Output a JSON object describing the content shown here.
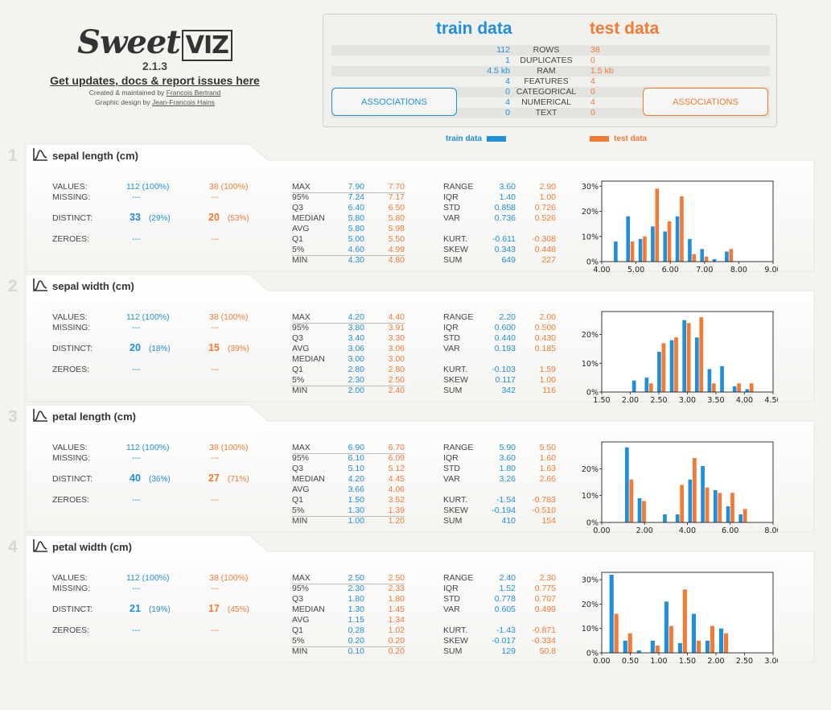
{
  "header": {
    "logo_text": "Sweet",
    "logo_viz": "VIZ",
    "version": "2.1.3",
    "updates_link": "Get updates, docs & report issues here",
    "created_prefix": "Created & maintained by",
    "created_name": "Francois Bertrand",
    "design_prefix": "Graphic design by",
    "design_name": "Jean-Francois Hains"
  },
  "summary": {
    "train_title": "train data",
    "test_title": "test data",
    "rows": [
      {
        "label": "ROWS",
        "train": "112",
        "test": "38"
      },
      {
        "label": "DUPLICATES",
        "train": "1",
        "test": "0"
      },
      {
        "label": "RAM",
        "train": "4.5 kb",
        "test": "1.5 kb"
      },
      {
        "label": "FEATURES",
        "train": "4",
        "test": "4"
      },
      {
        "label": "CATEGORICAL",
        "train": "0",
        "test": "0"
      },
      {
        "label": "NUMERICAL",
        "train": "4",
        "test": "4"
      },
      {
        "label": "TEXT",
        "train": "0",
        "test": "0"
      }
    ],
    "assoc_train_label": "ASSOCIATIONS",
    "assoc_test_label": "ASSOCIATIONS"
  },
  "legend": {
    "train": "train data",
    "test": "test data"
  },
  "colors": {
    "train": "#1f8fdc",
    "test": "#f47a34"
  },
  "labels": {
    "values": "VALUES:",
    "missing": "MISSING:",
    "distinct": "DISTINCT:",
    "zeroes": "ZEROES:",
    "max": "MAX",
    "p95": "95%",
    "q3": "Q3",
    "median": "MEDIAN",
    "avg": "AVG",
    "q1": "Q1",
    "p5": "5%",
    "min": "MIN",
    "range": "RANGE",
    "iqr": "IQR",
    "std": "STD",
    "var": "VAR",
    "kurt": "KURT.",
    "skew": "SKEW",
    "sum": "SUM"
  },
  "features": [
    {
      "num": "1",
      "name": "sepal length (cm)",
      "train": {
        "values": "112 (100%)",
        "missing": "---",
        "distinct": "33",
        "distinct_pct": "(29%)",
        "zeroes": "---"
      },
      "test": {
        "values": "38 (100%)",
        "missing": "---",
        "distinct": "20",
        "distinct_pct": "(53%)",
        "zeroes": "---"
      },
      "quant_order": [
        "max",
        "p95",
        "q3",
        "median",
        "avg",
        "q1",
        "p5",
        "min"
      ],
      "quant": {
        "max": [
          "7.90",
          "7.70"
        ],
        "p95": [
          "7.24",
          "7.17"
        ],
        "q3": [
          "6.40",
          "6.50"
        ],
        "median": [
          "5.80",
          "5.80"
        ],
        "avg": [
          "5.80",
          "5.98"
        ],
        "q1": [
          "5.00",
          "5.50"
        ],
        "p5": [
          "4.60",
          "4.99"
        ],
        "min": [
          "4.30",
          "4.80"
        ]
      },
      "stats": {
        "range": [
          "3.60",
          "2.90"
        ],
        "iqr": [
          "1.40",
          "1.00"
        ],
        "std": [
          "0.858",
          "0.726"
        ],
        "var": [
          "0.736",
          "0.526"
        ],
        "kurt": [
          "-0.611",
          "-0.308"
        ],
        "skew": [
          "0.343",
          "0.448"
        ],
        "sum": [
          "649",
          "227"
        ]
      },
      "hist": {
        "x_ticks": [
          "4.00",
          "5.00",
          "6.00",
          "7.00",
          "8.00",
          "9.00"
        ],
        "y_ticks": [
          "0%",
          "10%",
          "20%",
          "30%"
        ],
        "xlim": [
          4.0,
          9.0
        ],
        "ylim": [
          0,
          32
        ],
        "y_tick_values": [
          0,
          10,
          20,
          30
        ],
        "bin_edges": [
          4.3,
          4.66,
          5.02,
          5.38,
          5.74,
          6.1,
          6.46,
          6.82,
          7.18,
          7.54,
          7.9
        ],
        "train": [
          8,
          18,
          9,
          14,
          12,
          18,
          9,
          5,
          1,
          4
        ],
        "test": [
          0,
          8,
          10,
          29,
          16,
          26,
          3,
          2,
          0,
          5
        ]
      }
    },
    {
      "num": "2",
      "name": "sepal width (cm)",
      "train": {
        "values": "112 (100%)",
        "missing": "---",
        "distinct": "20",
        "distinct_pct": "(18%)",
        "zeroes": "---"
      },
      "test": {
        "values": "38 (100%)",
        "missing": "---",
        "distinct": "15",
        "distinct_pct": "(39%)",
        "zeroes": "---"
      },
      "quant_order": [
        "max",
        "p95",
        "q3",
        "avg",
        "median",
        "q1",
        "p5",
        "min"
      ],
      "quant": {
        "max": [
          "4.20",
          "4.40"
        ],
        "p95": [
          "3.80",
          "3.91"
        ],
        "q3": [
          "3.40",
          "3.30"
        ],
        "avg": [
          "3.06",
          "3.06"
        ],
        "median": [
          "3.00",
          "3.00"
        ],
        "q1": [
          "2.80",
          "2.80"
        ],
        "p5": [
          "2.30",
          "2.50"
        ],
        "min": [
          "2.00",
          "2.40"
        ]
      },
      "stats": {
        "range": [
          "2.20",
          "2.00"
        ],
        "iqr": [
          "0.600",
          "0.500"
        ],
        "std": [
          "0.440",
          "0.430"
        ],
        "var": [
          "0.193",
          "0.185"
        ],
        "kurt": [
          "-0.103",
          "1.59"
        ],
        "skew": [
          "0.117",
          "1.00"
        ],
        "sum": [
          "342",
          "116"
        ]
      },
      "hist": {
        "x_ticks": [
          "1.50",
          "2.00",
          "2.50",
          "3.00",
          "3.50",
          "4.00",
          "4.50"
        ],
        "y_ticks": [
          "0%",
          "10%",
          "20%"
        ],
        "xlim": [
          1.5,
          4.5
        ],
        "ylim": [
          0,
          28
        ],
        "y_tick_values": [
          0,
          10,
          20
        ],
        "bin_edges": [
          2.0,
          2.22,
          2.44,
          2.66,
          2.88,
          3.1,
          3.32,
          3.54,
          3.76,
          3.98,
          4.2
        ],
        "train": [
          4,
          5,
          14,
          18,
          25,
          19,
          8,
          9,
          2,
          1
        ],
        "test": [
          0,
          3,
          17,
          19,
          24,
          26,
          3,
          0,
          3,
          3
        ]
      }
    },
    {
      "num": "3",
      "name": "petal length (cm)",
      "train": {
        "values": "112 (100%)",
        "missing": "---",
        "distinct": "40",
        "distinct_pct": "(36%)",
        "zeroes": "---"
      },
      "test": {
        "values": "38 (100%)",
        "missing": "---",
        "distinct": "27",
        "distinct_pct": "(71%)",
        "zeroes": "---"
      },
      "quant_order": [
        "max",
        "p95",
        "q3",
        "median",
        "avg",
        "q1",
        "p5",
        "min"
      ],
      "quant": {
        "max": [
          "6.90",
          "6.70"
        ],
        "p95": [
          "6.10",
          "6.09"
        ],
        "q3": [
          "5.10",
          "5.12"
        ],
        "median": [
          "4.20",
          "4.45"
        ],
        "avg": [
          "3.66",
          "4.06"
        ],
        "q1": [
          "1.50",
          "3.52"
        ],
        "p5": [
          "1.30",
          "1.39"
        ],
        "min": [
          "1.00",
          "1.20"
        ]
      },
      "stats": {
        "range": [
          "5.90",
          "5.50"
        ],
        "iqr": [
          "3.60",
          "1.60"
        ],
        "std": [
          "1.80",
          "1.63"
        ],
        "var": [
          "3.26",
          "2.66"
        ],
        "kurt": [
          "-1.54",
          "-0.783"
        ],
        "skew": [
          "-0.194",
          "-0.510"
        ],
        "sum": [
          "410",
          "154"
        ]
      },
      "hist": {
        "x_ticks": [
          "0.00",
          "2.00",
          "4.00",
          "6.00",
          "8.00"
        ],
        "y_ticks": [
          "0%",
          "10%",
          "20%"
        ],
        "xlim": [
          0.0,
          8.0
        ],
        "ylim": [
          0,
          30
        ],
        "y_tick_values": [
          0,
          10,
          20
        ],
        "bin_edges": [
          1.0,
          1.59,
          2.18,
          2.77,
          3.36,
          3.95,
          4.54,
          5.13,
          5.72,
          6.31,
          6.9
        ],
        "train": [
          28,
          9,
          0,
          3,
          3,
          16,
          21,
          12,
          6,
          3
        ],
        "test": [
          16,
          8,
          0,
          0,
          14,
          24,
          13,
          11,
          11,
          5
        ]
      }
    },
    {
      "num": "4",
      "name": "petal width (cm)",
      "train": {
        "values": "112 (100%)",
        "missing": "---",
        "distinct": "21",
        "distinct_pct": "(19%)",
        "zeroes": "---"
      },
      "test": {
        "values": "38 (100%)",
        "missing": "---",
        "distinct": "17",
        "distinct_pct": "(45%)",
        "zeroes": "---"
      },
      "quant_order": [
        "max",
        "p95",
        "q3",
        "median",
        "avg",
        "q1",
        "p5",
        "min"
      ],
      "quant": {
        "max": [
          "2.50",
          "2.50"
        ],
        "p95": [
          "2.30",
          "2.33"
        ],
        "q3": [
          "1.80",
          "1.80"
        ],
        "median": [
          "1.30",
          "1.45"
        ],
        "avg": [
          "1.15",
          "1.34"
        ],
        "q1": [
          "0.28",
          "1.02"
        ],
        "p5": [
          "0.20",
          "0.20"
        ],
        "min": [
          "0.10",
          "0.20"
        ]
      },
      "stats": {
        "range": [
          "2.40",
          "2.30"
        ],
        "iqr": [
          "1.52",
          "0.775"
        ],
        "std": [
          "0.778",
          "0.707"
        ],
        "var": [
          "0.605",
          "0.499"
        ],
        "kurt": [
          "-1.43",
          "-0.871"
        ],
        "skew": [
          "-0.017",
          "-0.334"
        ],
        "sum": [
          "129",
          "50.8"
        ]
      },
      "hist": {
        "x_ticks": [
          "0.00",
          "0.50",
          "1.00",
          "1.50",
          "2.00",
          "2.50",
          "3.00"
        ],
        "y_ticks": [
          "0%",
          "10%",
          "20%",
          "30%"
        ],
        "xlim": [
          0.0,
          3.0
        ],
        "ylim": [
          0,
          33
        ],
        "y_tick_values": [
          0,
          10,
          20,
          30
        ],
        "bin_edges": [
          0.1,
          0.34,
          0.58,
          0.82,
          1.06,
          1.3,
          1.54,
          1.78,
          2.02,
          2.26,
          2.5
        ],
        "train": [
          32,
          5,
          1,
          5,
          21,
          4,
          16,
          5,
          10,
          0
        ],
        "test": [
          16,
          8,
          0,
          3,
          11,
          26,
          5,
          11,
          8,
          0
        ]
      }
    }
  ]
}
